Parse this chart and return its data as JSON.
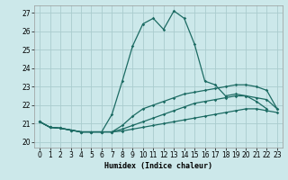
{
  "xlabel": "Humidex (Indice chaleur)",
  "xlim": [
    -0.5,
    23.5
  ],
  "ylim": [
    19.7,
    27.4
  ],
  "xticks": [
    0,
    1,
    2,
    3,
    4,
    5,
    6,
    7,
    8,
    9,
    10,
    11,
    12,
    13,
    14,
    15,
    16,
    17,
    18,
    19,
    20,
    21,
    22,
    23
  ],
  "yticks": [
    20,
    21,
    22,
    23,
    24,
    25,
    26,
    27
  ],
  "bg_color": "#cce8ea",
  "grid_color": "#aaccce",
  "line_color": "#1c6b63",
  "lines": [
    {
      "x": [
        0,
        1,
        2,
        3,
        4,
        5,
        6,
        7,
        8,
        9,
        10,
        11,
        12,
        13,
        14,
        15,
        16,
        17,
        18,
        19,
        20,
        21,
        22
      ],
      "y": [
        21.1,
        20.8,
        20.75,
        20.65,
        20.55,
        20.55,
        20.55,
        21.5,
        23.3,
        25.2,
        26.4,
        26.7,
        26.1,
        27.1,
        26.7,
        25.3,
        23.3,
        23.1,
        22.5,
        22.6,
        22.5,
        22.2,
        21.8
      ]
    },
    {
      "x": [
        0,
        1,
        2,
        3,
        4,
        5,
        6,
        7,
        8,
        9,
        10,
        11,
        12,
        13,
        14,
        15,
        16,
        17,
        18,
        19,
        20,
        21,
        22,
        23
      ],
      "y": [
        21.1,
        20.8,
        20.75,
        20.65,
        20.55,
        20.55,
        20.55,
        20.55,
        20.9,
        21.4,
        21.8,
        22.0,
        22.2,
        22.4,
        22.6,
        22.7,
        22.8,
        22.9,
        23.0,
        23.1,
        23.1,
        23.0,
        22.8,
        21.8
      ]
    },
    {
      "x": [
        0,
        1,
        2,
        3,
        4,
        5,
        6,
        7,
        8,
        9,
        10,
        11,
        12,
        13,
        14,
        15,
        16,
        17,
        18,
        19,
        20,
        21,
        22,
        23
      ],
      "y": [
        21.1,
        20.8,
        20.75,
        20.65,
        20.55,
        20.55,
        20.55,
        20.55,
        20.7,
        20.9,
        21.1,
        21.3,
        21.5,
        21.7,
        21.9,
        22.1,
        22.2,
        22.3,
        22.4,
        22.5,
        22.5,
        22.4,
        22.3,
        21.8
      ]
    },
    {
      "x": [
        0,
        1,
        2,
        3,
        4,
        5,
        6,
        7,
        8,
        9,
        10,
        11,
        12,
        13,
        14,
        15,
        16,
        17,
        18,
        19,
        20,
        21,
        22,
        23
      ],
      "y": [
        21.1,
        20.8,
        20.75,
        20.65,
        20.55,
        20.55,
        20.55,
        20.55,
        20.6,
        20.7,
        20.8,
        20.9,
        21.0,
        21.1,
        21.2,
        21.3,
        21.4,
        21.5,
        21.6,
        21.7,
        21.8,
        21.8,
        21.7,
        21.6
      ]
    }
  ]
}
